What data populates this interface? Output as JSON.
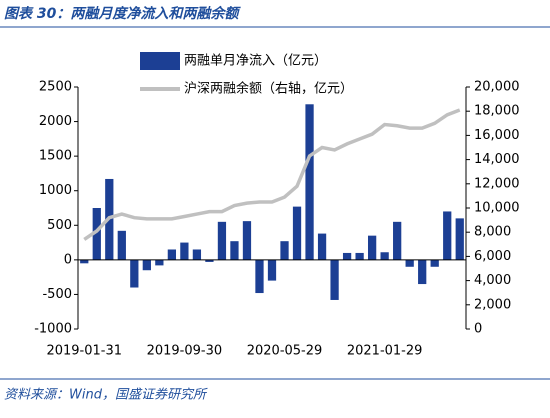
{
  "title": "图表 30：两融月度净流入和两融余额",
  "source": "资料来源：Wind，国盛证券研究所",
  "chart_data": {
    "type": "bar-line",
    "categories": [
      "2019-01-31",
      null,
      null,
      null,
      null,
      null,
      null,
      null,
      "2019-09-30",
      null,
      null,
      null,
      null,
      null,
      null,
      null,
      "2020-05-29",
      null,
      null,
      null,
      null,
      null,
      null,
      null,
      "2021-01-29",
      null,
      null,
      null,
      null,
      null,
      null
    ],
    "series": [
      {
        "name": "两融单月净流入（亿元）",
        "type": "bar",
        "color": "#1c3f94",
        "values": [
          -50,
          750,
          1170,
          420,
          -400,
          -150,
          -80,
          150,
          250,
          150,
          -30,
          550,
          270,
          560,
          -480,
          -300,
          270,
          770,
          2250,
          380,
          -580,
          100,
          100,
          350,
          110,
          550,
          -100,
          -350,
          -100,
          700,
          600
        ]
      },
      {
        "name": "沪深两融余额（右轴，亿元）",
        "type": "line",
        "axis": "y2",
        "color": "#c0c0c0",
        "values": [
          7400,
          8100,
          9200,
          9500,
          9200,
          9100,
          9100,
          9100,
          9300,
          9500,
          9700,
          9700,
          10200,
          10400,
          10500,
          10500,
          10900,
          11800,
          14300,
          15000,
          14800,
          15300,
          15700,
          16100,
          16900,
          16800,
          16600,
          16600,
          17000,
          17700,
          18100
        ]
      }
    ],
    "ylim": [
      -1000,
      2500
    ],
    "yticks": [
      -1000,
      -500,
      0,
      500,
      1000,
      1500,
      2000,
      2500
    ],
    "y2lim": [
      0,
      20000
    ],
    "y2ticks": [
      0,
      {
        "value": 2000,
        "label": "2,000"
      },
      {
        "value": 4000,
        "label": "4,000"
      },
      {
        "value": 6000,
        "label": "6,000"
      },
      {
        "value": 8000,
        "label": "8,000"
      },
      {
        "value": 10000,
        "label": "10,000"
      },
      {
        "value": 12000,
        "label": "12,000"
      },
      {
        "value": 14000,
        "label": "14,000"
      },
      {
        "value": 16000,
        "label": "16,000"
      },
      {
        "value": 18000,
        "label": "18,000"
      },
      {
        "value": 20000,
        "label": "20,000"
      }
    ]
  }
}
